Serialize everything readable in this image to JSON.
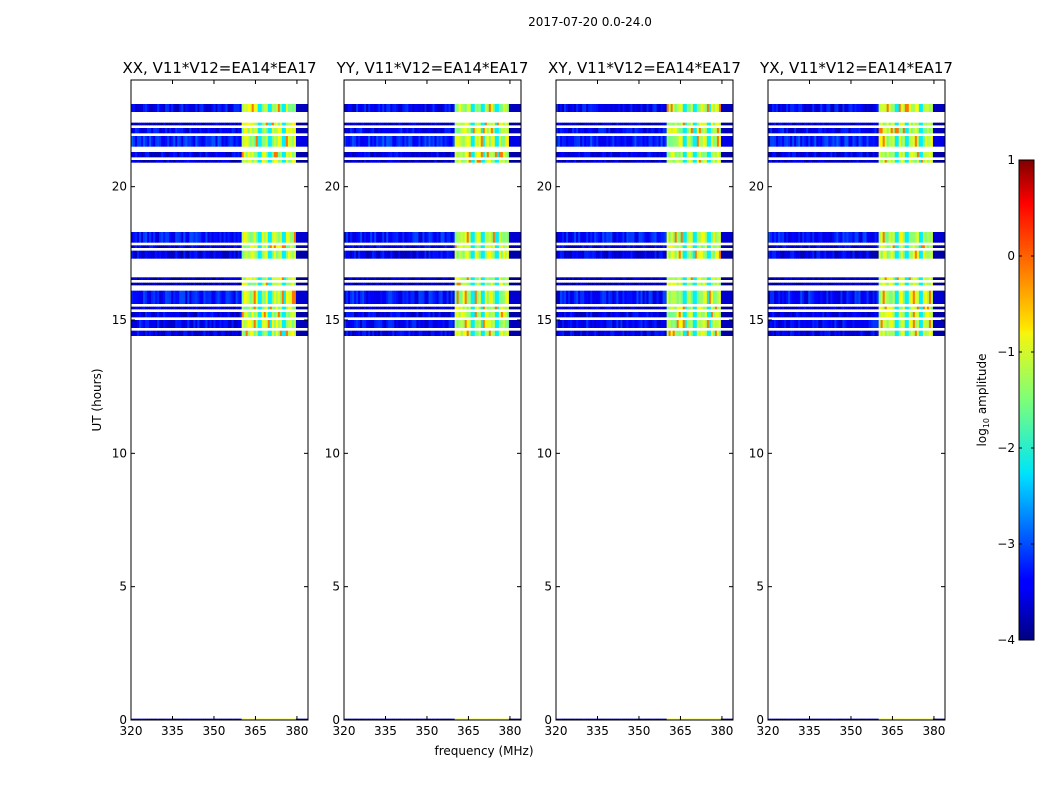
{
  "chart_data": {
    "type": "heatmap",
    "suptitle": "2017-07-20 0.0-24.0",
    "xlabel": "frequency (MHz)",
    "ylabel": "UT (hours)",
    "xlim": [
      320,
      384
    ],
    "ylim": [
      0,
      24
    ],
    "x_ticks": [
      320,
      335,
      350,
      365,
      380
    ],
    "y_ticks": [
      0,
      5,
      10,
      15,
      20
    ],
    "panels": [
      {
        "title": "XX, V11*V12=EA14*EA17"
      },
      {
        "title": "YY, V11*V12=EA14*EA17"
      },
      {
        "title": "XY, V11*V12=EA14*EA17"
      },
      {
        "title": "YX, V11*V12=EA14*EA17"
      }
    ],
    "colorbar": {
      "label_main": "log",
      "label_sub": "10",
      "label_tail": " amplitude",
      "range": [
        -4,
        1
      ],
      "ticks": [
        1,
        0,
        -1,
        -2,
        -3,
        -4
      ],
      "tick_labels": [
        "1",
        "0",
        "−1",
        "−2",
        "−3",
        "−4"
      ],
      "colormap": "jet"
    },
    "bright_band_mhz": [
      360,
      379
    ],
    "time_blocks_hours": [
      {
        "start": 14.4,
        "end": 14.6,
        "level": -3.5
      },
      {
        "start": 14.7,
        "end": 15.0,
        "level": -3.4
      },
      {
        "start": 15.1,
        "end": 15.3,
        "level": -3.5
      },
      {
        "start": 15.4,
        "end": 15.5,
        "level": -3.6
      },
      {
        "start": 15.6,
        "end": 16.1,
        "level": -3.3
      },
      {
        "start": 16.3,
        "end": 16.4,
        "level": -3.7
      },
      {
        "start": 16.5,
        "end": 16.6,
        "level": -3.7
      },
      {
        "start": 17.3,
        "end": 17.6,
        "level": -3.5
      },
      {
        "start": 17.7,
        "end": 17.8,
        "level": -3.5
      },
      {
        "start": 17.9,
        "end": 18.3,
        "level": -3.3
      },
      {
        "start": 20.9,
        "end": 21.0,
        "level": -3.6
      },
      {
        "start": 21.1,
        "end": 21.3,
        "level": -3.5
      },
      {
        "start": 21.5,
        "end": 21.9,
        "level": -3.2
      },
      {
        "start": 22.0,
        "end": 22.2,
        "level": -3.4
      },
      {
        "start": 22.3,
        "end": 22.4,
        "level": -3.6
      },
      {
        "start": 22.8,
        "end": 23.1,
        "level": -3.4
      }
    ],
    "baseline_block_hours": {
      "start": 0.0,
      "end": 0.05,
      "level": -3.8
    }
  }
}
